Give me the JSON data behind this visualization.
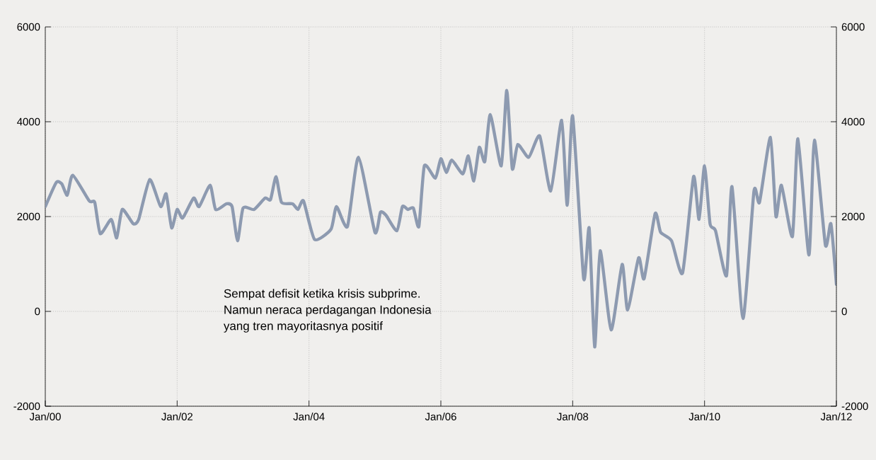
{
  "chart_data": {
    "type": "line",
    "x": [
      "2000-01",
      "2000-03",
      "2000-04",
      "2000-05",
      "2000-06",
      "2000-09",
      "2000-10",
      "2000-11",
      "2001-01",
      "2001-02",
      "2001-03",
      "2001-05",
      "2001-06",
      "2001-08",
      "2001-10",
      "2001-11",
      "2001-12",
      "2002-01",
      "2002-02",
      "2002-04",
      "2002-05",
      "2002-07",
      "2002-08",
      "2002-10",
      "2002-11",
      "2002-12",
      "2003-01",
      "2003-03",
      "2003-05",
      "2003-06",
      "2003-07",
      "2003-08",
      "2003-10",
      "2003-11",
      "2003-12",
      "2004-02",
      "2004-05",
      "2004-06",
      "2004-08",
      "2004-10",
      "2005-01",
      "2005-02",
      "2005-03",
      "2005-05",
      "2005-06",
      "2005-07",
      "2005-08",
      "2005-09",
      "2005-10",
      "2005-12",
      "2006-01",
      "2006-02",
      "2006-03",
      "2006-05",
      "2006-06",
      "2006-07",
      "2006-08",
      "2006-09",
      "2006-10",
      "2006-12",
      "2007-01",
      "2007-02",
      "2007-03",
      "2007-05",
      "2007-07",
      "2007-09",
      "2007-11",
      "2007-12",
      "2008-01",
      "2008-03",
      "2008-04",
      "2008-05",
      "2008-06",
      "2008-08",
      "2008-10",
      "2008-11",
      "2009-01",
      "2009-02",
      "2009-04",
      "2009-05",
      "2009-07",
      "2009-09",
      "2009-11",
      "2009-12",
      "2010-01",
      "2010-02",
      "2010-03",
      "2010-05",
      "2010-06",
      "2010-08",
      "2010-10",
      "2010-11",
      "2011-01",
      "2011-02",
      "2011-03",
      "2011-05",
      "2011-06",
      "2011-08",
      "2011-09",
      "2011-11",
      "2011-12",
      "2012-01"
    ],
    "series": [
      {
        "color": "#8d9ab0",
        "values": [
          2210,
          2720,
          2690,
          2450,
          2870,
          2330,
          2300,
          1640,
          1940,
          1550,
          2150,
          1850,
          1940,
          2780,
          2210,
          2480,
          1760,
          2150,
          1970,
          2390,
          2210,
          2660,
          2150,
          2270,
          2210,
          1490,
          2180,
          2150,
          2390,
          2360,
          2840,
          2300,
          2270,
          2150,
          2330,
          1520,
          1730,
          2210,
          1790,
          3250,
          1670,
          2090,
          2030,
          1700,
          2210,
          2150,
          2180,
          1790,
          3070,
          2810,
          3220,
          2930,
          3190,
          2900,
          3280,
          2750,
          3460,
          3160,
          4150,
          3070,
          4660,
          3010,
          3520,
          3250,
          3700,
          2540,
          4030,
          2240,
          4120,
          690,
          1760,
          -750,
          1280,
          -390,
          990,
          30,
          1130,
          690,
          2060,
          1670,
          1490,
          810,
          2840,
          1940,
          3070,
          1850,
          1700,
          750,
          2630,
          -150,
          2540,
          2300,
          3670,
          2000,
          2660,
          1580,
          3640,
          1190,
          3610,
          1400,
          1850,
          570
        ]
      }
    ],
    "xlim": [
      "2000-01",
      "2012-01"
    ],
    "xticks": [
      {
        "value": "2000-01",
        "label": "Jan/00"
      },
      {
        "value": "2002-01",
        "label": "Jan/02"
      },
      {
        "value": "2004-01",
        "label": "Jan/04"
      },
      {
        "value": "2006-01",
        "label": "Jan/06"
      },
      {
        "value": "2008-01",
        "label": "Jan/08"
      },
      {
        "value": "2010-01",
        "label": "Jan/10"
      },
      {
        "value": "2012-01",
        "label": "Jan/12"
      }
    ],
    "ylim": [
      -2000,
      6000
    ],
    "yticks": [
      -2000,
      0,
      2000,
      4000,
      6000
    ],
    "y2lim": [
      -2000,
      6000
    ],
    "y2ticks": [
      -2000,
      0,
      2000,
      4000,
      6000
    ],
    "grid": true,
    "marker": "none",
    "line_style": "solid",
    "annotations": [
      "Sempat defisit ketika krisis subprime.",
      "Namun neraca perdagangan Indonesia",
      "yang tren mayoritasnya positif"
    ]
  }
}
